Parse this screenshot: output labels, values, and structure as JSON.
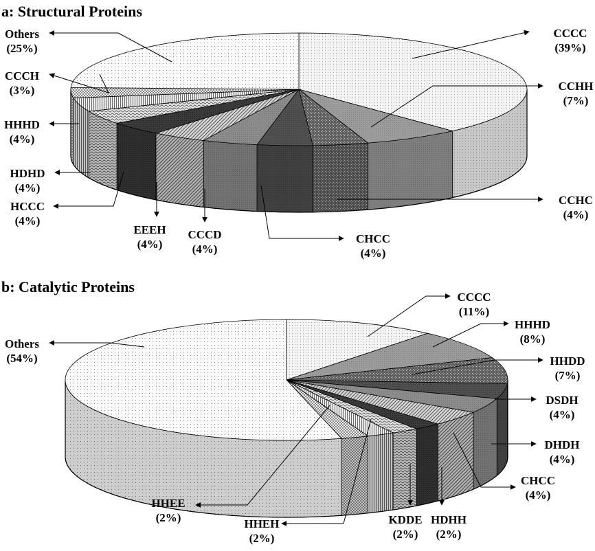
{
  "chart_data": [
    {
      "type": "pie",
      "title": "a: Structural Proteins",
      "slices": [
        {
          "name": "CCCC",
          "value": 39,
          "pct": "(39%)",
          "pattern": "fine-dots-light"
        },
        {
          "name": "CCHH",
          "value": 7,
          "pct": "(7%)",
          "pattern": "grey-medium"
        },
        {
          "name": "CCHC",
          "value": 4,
          "pct": "(4%)",
          "pattern": "dots-dark"
        },
        {
          "name": "CHCC",
          "value": 4,
          "pct": "(4%)",
          "pattern": "grey-dark"
        },
        {
          "name": "CCCD",
          "value": 4,
          "pct": "(4%)",
          "pattern": "grey-medium-2"
        },
        {
          "name": "EEEH",
          "value": 4,
          "pct": "(4%)",
          "pattern": "hatch-diagonal"
        },
        {
          "name": "HCCC",
          "value": 4,
          "pct": "(4%)",
          "pattern": "grey-darkest"
        },
        {
          "name": "HDHD",
          "value": 4,
          "pct": "(4%)",
          "pattern": "wave"
        },
        {
          "name": "HHHD",
          "value": 4,
          "pct": "(4%)",
          "pattern": "vertical-lines"
        },
        {
          "name": "CCCH",
          "value": 3,
          "pct": "(3%)",
          "pattern": "checker"
        },
        {
          "name": "Others",
          "value": 25,
          "pct": "(25%)",
          "pattern": "sparse-dots"
        }
      ]
    },
    {
      "type": "pie",
      "title": "b: Catalytic Proteins",
      "slices": [
        {
          "name": "CCCC",
          "value": 11,
          "pct": "(11%)",
          "pattern": "fine-dots-light"
        },
        {
          "name": "HHHD",
          "value": 8,
          "pct": "(8%)",
          "pattern": "grey-medium"
        },
        {
          "name": "HHDD",
          "value": 7,
          "pct": "(7%)",
          "pattern": "dots-dark"
        },
        {
          "name": "DSDH",
          "value": 4,
          "pct": "(4%)",
          "pattern": "grey-dark"
        },
        {
          "name": "DHDH",
          "value": 4,
          "pct": "(4%)",
          "pattern": "grey-medium-2"
        },
        {
          "name": "CHCC",
          "value": 4,
          "pct": "(4%)",
          "pattern": "hatch-diagonal"
        },
        {
          "name": "HDHH",
          "value": 2,
          "pct": "(2%)",
          "pattern": "grey-darkest"
        },
        {
          "name": "KDDE",
          "value": 2,
          "pct": "(2%)",
          "pattern": "wave"
        },
        {
          "name": "HHEH",
          "value": 2,
          "pct": "(2%)",
          "pattern": "vertical-lines"
        },
        {
          "name": "HHEE",
          "value": 2,
          "pct": "(2%)",
          "pattern": "checker"
        },
        {
          "name": "Others",
          "value": 54,
          "pct": "(54%)",
          "pattern": "sparse-dots"
        }
      ]
    }
  ]
}
